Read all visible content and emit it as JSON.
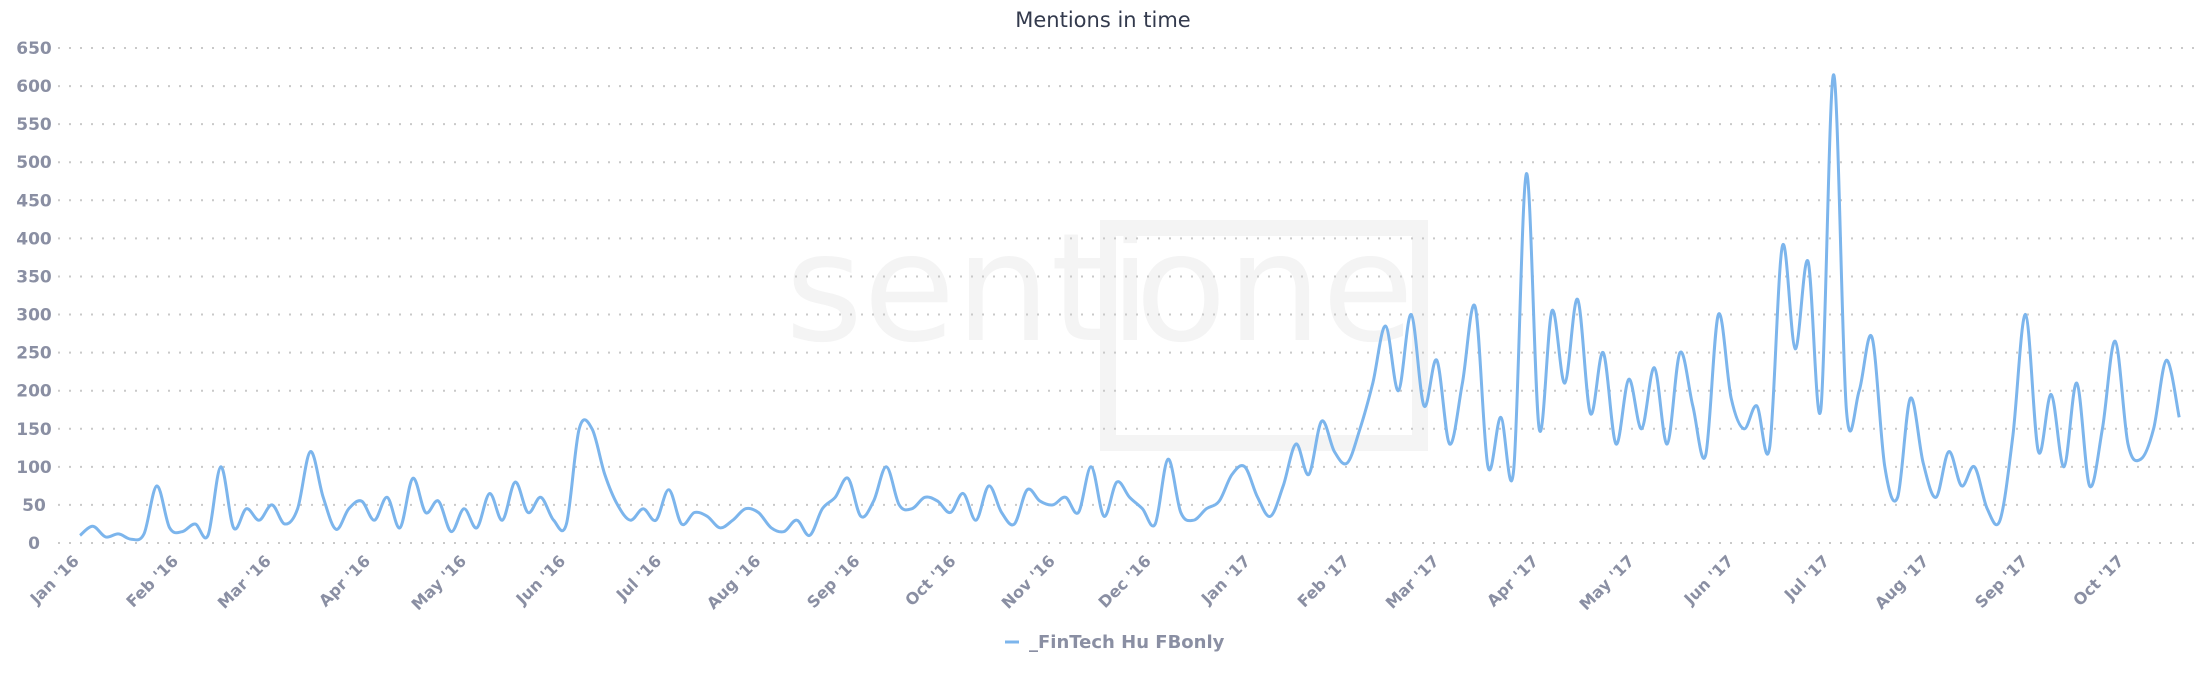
{
  "chart_data": {
    "type": "line",
    "title": "Mentions in time",
    "xlabel": "",
    "ylabel": "",
    "ylim": [
      0,
      650
    ],
    "yticks": [
      0,
      50,
      100,
      150,
      200,
      250,
      300,
      350,
      400,
      450,
      500,
      550,
      600,
      650
    ],
    "xticks": [
      {
        "date": "2016-01-01",
        "label": "Jan '16"
      },
      {
        "date": "2016-02-01",
        "label": "Feb '16"
      },
      {
        "date": "2016-03-01",
        "label": "Mar '16"
      },
      {
        "date": "2016-04-01",
        "label": "Apr '16"
      },
      {
        "date": "2016-05-01",
        "label": "May '16"
      },
      {
        "date": "2016-06-01",
        "label": "Jun '16"
      },
      {
        "date": "2016-07-01",
        "label": "Jul '16"
      },
      {
        "date": "2016-08-01",
        "label": "Aug '16"
      },
      {
        "date": "2016-09-01",
        "label": "Sep '16"
      },
      {
        "date": "2016-10-01",
        "label": "Oct '16"
      },
      {
        "date": "2016-11-01",
        "label": "Nov '16"
      },
      {
        "date": "2016-12-01",
        "label": "Dec '16"
      },
      {
        "date": "2017-01-01",
        "label": "Jan '17"
      },
      {
        "date": "2017-02-01",
        "label": "Feb '17"
      },
      {
        "date": "2017-03-01",
        "label": "Mar '17"
      },
      {
        "date": "2017-04-01",
        "label": "Apr '17"
      },
      {
        "date": "2017-05-01",
        "label": "May '17"
      },
      {
        "date": "2017-06-01",
        "label": "Jun '17"
      },
      {
        "date": "2017-07-01",
        "label": "Jul '17"
      },
      {
        "date": "2017-08-01",
        "label": "Aug '17"
      },
      {
        "date": "2017-09-01",
        "label": "Sep '17"
      },
      {
        "date": "2017-10-01",
        "label": "Oct '17"
      }
    ],
    "grid": true,
    "legend_position": "bottom-center",
    "series": [
      {
        "name": "_FinTech Hu FBonly",
        "color": "#7cb5ec",
        "points": [
          [
            "2016-01-01",
            10
          ],
          [
            "2016-01-05",
            22
          ],
          [
            "2016-01-09",
            8
          ],
          [
            "2016-01-13",
            12
          ],
          [
            "2016-01-17",
            5
          ],
          [
            "2016-01-21",
            12
          ],
          [
            "2016-01-25",
            75
          ],
          [
            "2016-01-29",
            20
          ],
          [
            "2016-02-02",
            15
          ],
          [
            "2016-02-06",
            25
          ],
          [
            "2016-02-10",
            10
          ],
          [
            "2016-02-14",
            100
          ],
          [
            "2016-02-18",
            20
          ],
          [
            "2016-02-22",
            45
          ],
          [
            "2016-02-26",
            30
          ],
          [
            "2016-03-01",
            50
          ],
          [
            "2016-03-05",
            25
          ],
          [
            "2016-03-09",
            45
          ],
          [
            "2016-03-13",
            120
          ],
          [
            "2016-03-17",
            60
          ],
          [
            "2016-03-21",
            18
          ],
          [
            "2016-03-25",
            45
          ],
          [
            "2016-03-29",
            55
          ],
          [
            "2016-04-02",
            30
          ],
          [
            "2016-04-06",
            60
          ],
          [
            "2016-04-10",
            20
          ],
          [
            "2016-04-14",
            85
          ],
          [
            "2016-04-18",
            40
          ],
          [
            "2016-04-22",
            55
          ],
          [
            "2016-04-26",
            15
          ],
          [
            "2016-04-30",
            45
          ],
          [
            "2016-05-04",
            20
          ],
          [
            "2016-05-08",
            65
          ],
          [
            "2016-05-12",
            30
          ],
          [
            "2016-05-16",
            80
          ],
          [
            "2016-05-20",
            40
          ],
          [
            "2016-05-24",
            60
          ],
          [
            "2016-05-28",
            30
          ],
          [
            "2016-06-01",
            25
          ],
          [
            "2016-06-05",
            150
          ],
          [
            "2016-06-09",
            150
          ],
          [
            "2016-06-13",
            90
          ],
          [
            "2016-06-17",
            50
          ],
          [
            "2016-06-21",
            30
          ],
          [
            "2016-06-25",
            45
          ],
          [
            "2016-06-29",
            30
          ],
          [
            "2016-07-03",
            70
          ],
          [
            "2016-07-07",
            25
          ],
          [
            "2016-07-11",
            40
          ],
          [
            "2016-07-15",
            35
          ],
          [
            "2016-07-19",
            20
          ],
          [
            "2016-07-23",
            30
          ],
          [
            "2016-07-27",
            45
          ],
          [
            "2016-07-31",
            40
          ],
          [
            "2016-08-04",
            20
          ],
          [
            "2016-08-08",
            15
          ],
          [
            "2016-08-12",
            30
          ],
          [
            "2016-08-16",
            10
          ],
          [
            "2016-08-20",
            45
          ],
          [
            "2016-08-24",
            60
          ],
          [
            "2016-08-28",
            85
          ],
          [
            "2016-09-01",
            35
          ],
          [
            "2016-09-05",
            55
          ],
          [
            "2016-09-09",
            100
          ],
          [
            "2016-09-13",
            50
          ],
          [
            "2016-09-17",
            45
          ],
          [
            "2016-09-21",
            60
          ],
          [
            "2016-09-25",
            55
          ],
          [
            "2016-09-29",
            40
          ],
          [
            "2016-10-03",
            65
          ],
          [
            "2016-10-07",
            30
          ],
          [
            "2016-10-11",
            75
          ],
          [
            "2016-10-15",
            40
          ],
          [
            "2016-10-19",
            25
          ],
          [
            "2016-10-23",
            70
          ],
          [
            "2016-10-27",
            55
          ],
          [
            "2016-10-31",
            50
          ],
          [
            "2016-11-04",
            60
          ],
          [
            "2016-11-08",
            40
          ],
          [
            "2016-11-12",
            100
          ],
          [
            "2016-11-16",
            35
          ],
          [
            "2016-11-20",
            80
          ],
          [
            "2016-11-24",
            60
          ],
          [
            "2016-11-28",
            45
          ],
          [
            "2016-12-02",
            25
          ],
          [
            "2016-12-06",
            110
          ],
          [
            "2016-12-10",
            40
          ],
          [
            "2016-12-14",
            30
          ],
          [
            "2016-12-18",
            45
          ],
          [
            "2016-12-22",
            55
          ],
          [
            "2016-12-26",
            90
          ],
          [
            "2016-12-30",
            100
          ],
          [
            "2017-01-03",
            60
          ],
          [
            "2017-01-07",
            35
          ],
          [
            "2017-01-11",
            75
          ],
          [
            "2017-01-15",
            130
          ],
          [
            "2017-01-19",
            90
          ],
          [
            "2017-01-23",
            160
          ],
          [
            "2017-01-27",
            120
          ],
          [
            "2017-01-31",
            105
          ],
          [
            "2017-02-04",
            150
          ],
          [
            "2017-02-08",
            210
          ],
          [
            "2017-02-12",
            285
          ],
          [
            "2017-02-16",
            200
          ],
          [
            "2017-02-20",
            300
          ],
          [
            "2017-02-24",
            180
          ],
          [
            "2017-02-28",
            240
          ],
          [
            "2017-03-04",
            130
          ],
          [
            "2017-03-08",
            210
          ],
          [
            "2017-03-12",
            310
          ],
          [
            "2017-03-16",
            100
          ],
          [
            "2017-03-20",
            165
          ],
          [
            "2017-03-24",
            95
          ],
          [
            "2017-03-28",
            485
          ],
          [
            "2017-04-01",
            150
          ],
          [
            "2017-04-05",
            305
          ],
          [
            "2017-04-09",
            210
          ],
          [
            "2017-04-13",
            320
          ],
          [
            "2017-04-17",
            170
          ],
          [
            "2017-04-21",
            250
          ],
          [
            "2017-04-25",
            130
          ],
          [
            "2017-04-29",
            215
          ],
          [
            "2017-05-03",
            150
          ],
          [
            "2017-05-07",
            230
          ],
          [
            "2017-05-11",
            130
          ],
          [
            "2017-05-15",
            250
          ],
          [
            "2017-05-19",
            180
          ],
          [
            "2017-05-23",
            115
          ],
          [
            "2017-05-27",
            300
          ],
          [
            "2017-05-31",
            190
          ],
          [
            "2017-06-04",
            150
          ],
          [
            "2017-06-08",
            180
          ],
          [
            "2017-06-12",
            125
          ],
          [
            "2017-06-16",
            390
          ],
          [
            "2017-06-20",
            255
          ],
          [
            "2017-06-24",
            370
          ],
          [
            "2017-06-28",
            175
          ],
          [
            "2017-07-02",
            615
          ],
          [
            "2017-07-06",
            175
          ],
          [
            "2017-07-10",
            200
          ],
          [
            "2017-07-14",
            270
          ],
          [
            "2017-07-18",
            100
          ],
          [
            "2017-07-22",
            60
          ],
          [
            "2017-07-26",
            190
          ],
          [
            "2017-07-30",
            105
          ],
          [
            "2017-08-03",
            60
          ],
          [
            "2017-08-07",
            120
          ],
          [
            "2017-08-11",
            75
          ],
          [
            "2017-08-15",
            100
          ],
          [
            "2017-08-19",
            45
          ],
          [
            "2017-08-23",
            30
          ],
          [
            "2017-08-27",
            140
          ],
          [
            "2017-08-31",
            300
          ],
          [
            "2017-09-04",
            120
          ],
          [
            "2017-09-08",
            195
          ],
          [
            "2017-09-12",
            100
          ],
          [
            "2017-09-16",
            210
          ],
          [
            "2017-09-20",
            75
          ],
          [
            "2017-09-24",
            150
          ],
          [
            "2017-09-28",
            265
          ],
          [
            "2017-10-02",
            130
          ],
          [
            "2017-10-06",
            110
          ],
          [
            "2017-10-10",
            150
          ],
          [
            "2017-10-14",
            240
          ],
          [
            "2017-10-18",
            165
          ]
        ]
      }
    ]
  },
  "watermark": {
    "logo_text": "sentione",
    "color": "#f4f4f4"
  }
}
